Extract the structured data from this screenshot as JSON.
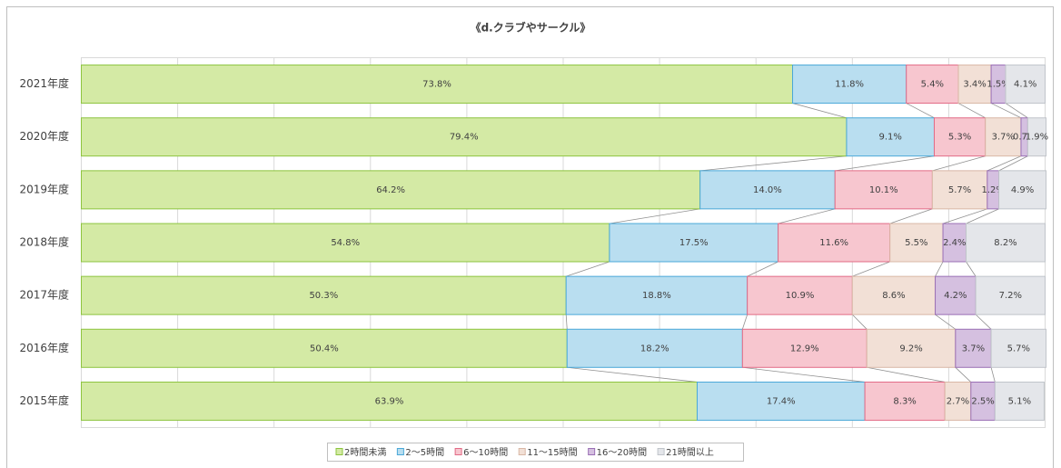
{
  "chart_data": {
    "type": "stacked-bar-100",
    "title": "《d.クラブやサークル》",
    "categories": [
      "2021年度",
      "2020年度",
      "2019年度",
      "2018年度",
      "2017年度",
      "2016年度",
      "2015年度"
    ],
    "xlim": [
      0,
      100
    ],
    "xticks": [
      0,
      10,
      20,
      30,
      40,
      50,
      60,
      70,
      80,
      90,
      100
    ],
    "grid": true,
    "legend": "bottom",
    "series": [
      {
        "name": "2時間未満",
        "color": "#d4eaa5",
        "edge": "#8dc43f",
        "values": [
          73.8,
          79.4,
          64.2,
          54.8,
          50.3,
          50.4,
          63.9
        ],
        "value_labels": [
          "73.8%",
          "79.4%",
          "64.2%",
          "54.8%",
          "50.3%",
          "50.4%",
          "63.9%"
        ]
      },
      {
        "name": "2～5時間",
        "color": "#b9def0",
        "edge": "#4aa8d8",
        "values": [
          11.8,
          9.1,
          14.0,
          17.5,
          18.8,
          18.2,
          17.4
        ],
        "value_labels": [
          "11.8%",
          "9.1%",
          "14.0%",
          "17.5%",
          "18.8%",
          "18.2%",
          "17.4%"
        ]
      },
      {
        "name": "6～10時間",
        "color": "#f7c6cf",
        "edge": "#e26b86",
        "values": [
          5.4,
          5.3,
          10.1,
          11.6,
          10.9,
          12.9,
          8.3
        ],
        "value_labels": [
          "5.4%",
          "5.3%",
          "10.1%",
          "11.6%",
          "10.9%",
          "12.9%",
          "8.3%"
        ]
      },
      {
        "name": "11～15時間",
        "color": "#f2e0d6",
        "edge": "#d9b7a6",
        "values": [
          3.4,
          3.7,
          5.7,
          5.5,
          8.6,
          9.2,
          2.7
        ],
        "value_labels": [
          "3.4%",
          "3.7%",
          "5.7%",
          "5.5%",
          "8.6%",
          "9.2%",
          "2.7%"
        ]
      },
      {
        "name": "16～20時間",
        "color": "#d5c0e0",
        "edge": "#9a6fb5",
        "values": [
          1.5,
          0.7,
          1.2,
          2.4,
          4.2,
          3.7,
          2.5
        ],
        "value_labels": [
          "1.5%",
          "0.7%",
          "1.2%",
          "2.4%",
          "4.2%",
          "3.7%",
          "2.5%"
        ]
      },
      {
        "name": "21時間以上",
        "color": "#e4e6ea",
        "edge": "#c0c4ca",
        "values": [
          4.1,
          1.9,
          4.9,
          8.2,
          7.2,
          5.7,
          5.1
        ],
        "value_labels": [
          "4.1%",
          "1.9%",
          "4.9%",
          "8.2%",
          "7.2%",
          "5.7%",
          "5.1%"
        ]
      }
    ]
  }
}
